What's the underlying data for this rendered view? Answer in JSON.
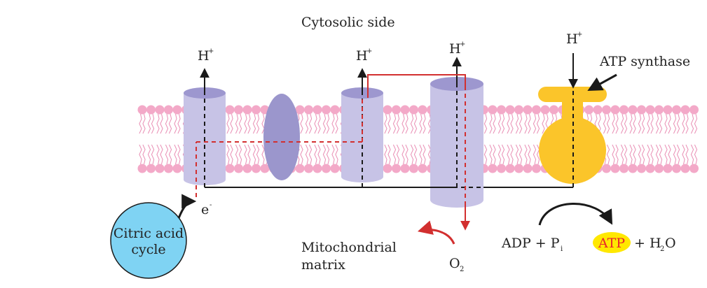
{
  "labels": {
    "cytosolic_side": "Cytosolic side",
    "mitochondrial_line1": "Mitochondrial",
    "mitochondrial_line2": "matrix",
    "atp_synthase": "ATP synthase",
    "citric_line1": "Citric acid",
    "citric_line2": "cycle",
    "electron": "e",
    "electron_sup": "-",
    "proton": "H",
    "proton_sup": "+",
    "oxygen": "O",
    "oxygen_sub": "2",
    "adp_pi": "ADP + P",
    "pi_sub": "i",
    "atp": "ATP",
    "plus_h2o_pre": "+ H",
    "h2o_sub": "2",
    "h2o_post": "O"
  },
  "colors": {
    "phospholipid_head": "#f3a9c8",
    "phospholipid_tail": "#e98fb5",
    "protein_complex": "#c7c3e6",
    "protein_top": "#9d97cf",
    "ellipse_complex": "#9b96cc",
    "atp_synthase": "#fbc52a",
    "citric_cycle": "#7fd3f3",
    "atp_highlight": "#ffe800",
    "atp_text": "#e8262b",
    "electron_path": "#d22f2f",
    "arrow_black": "#1a1a1a"
  }
}
